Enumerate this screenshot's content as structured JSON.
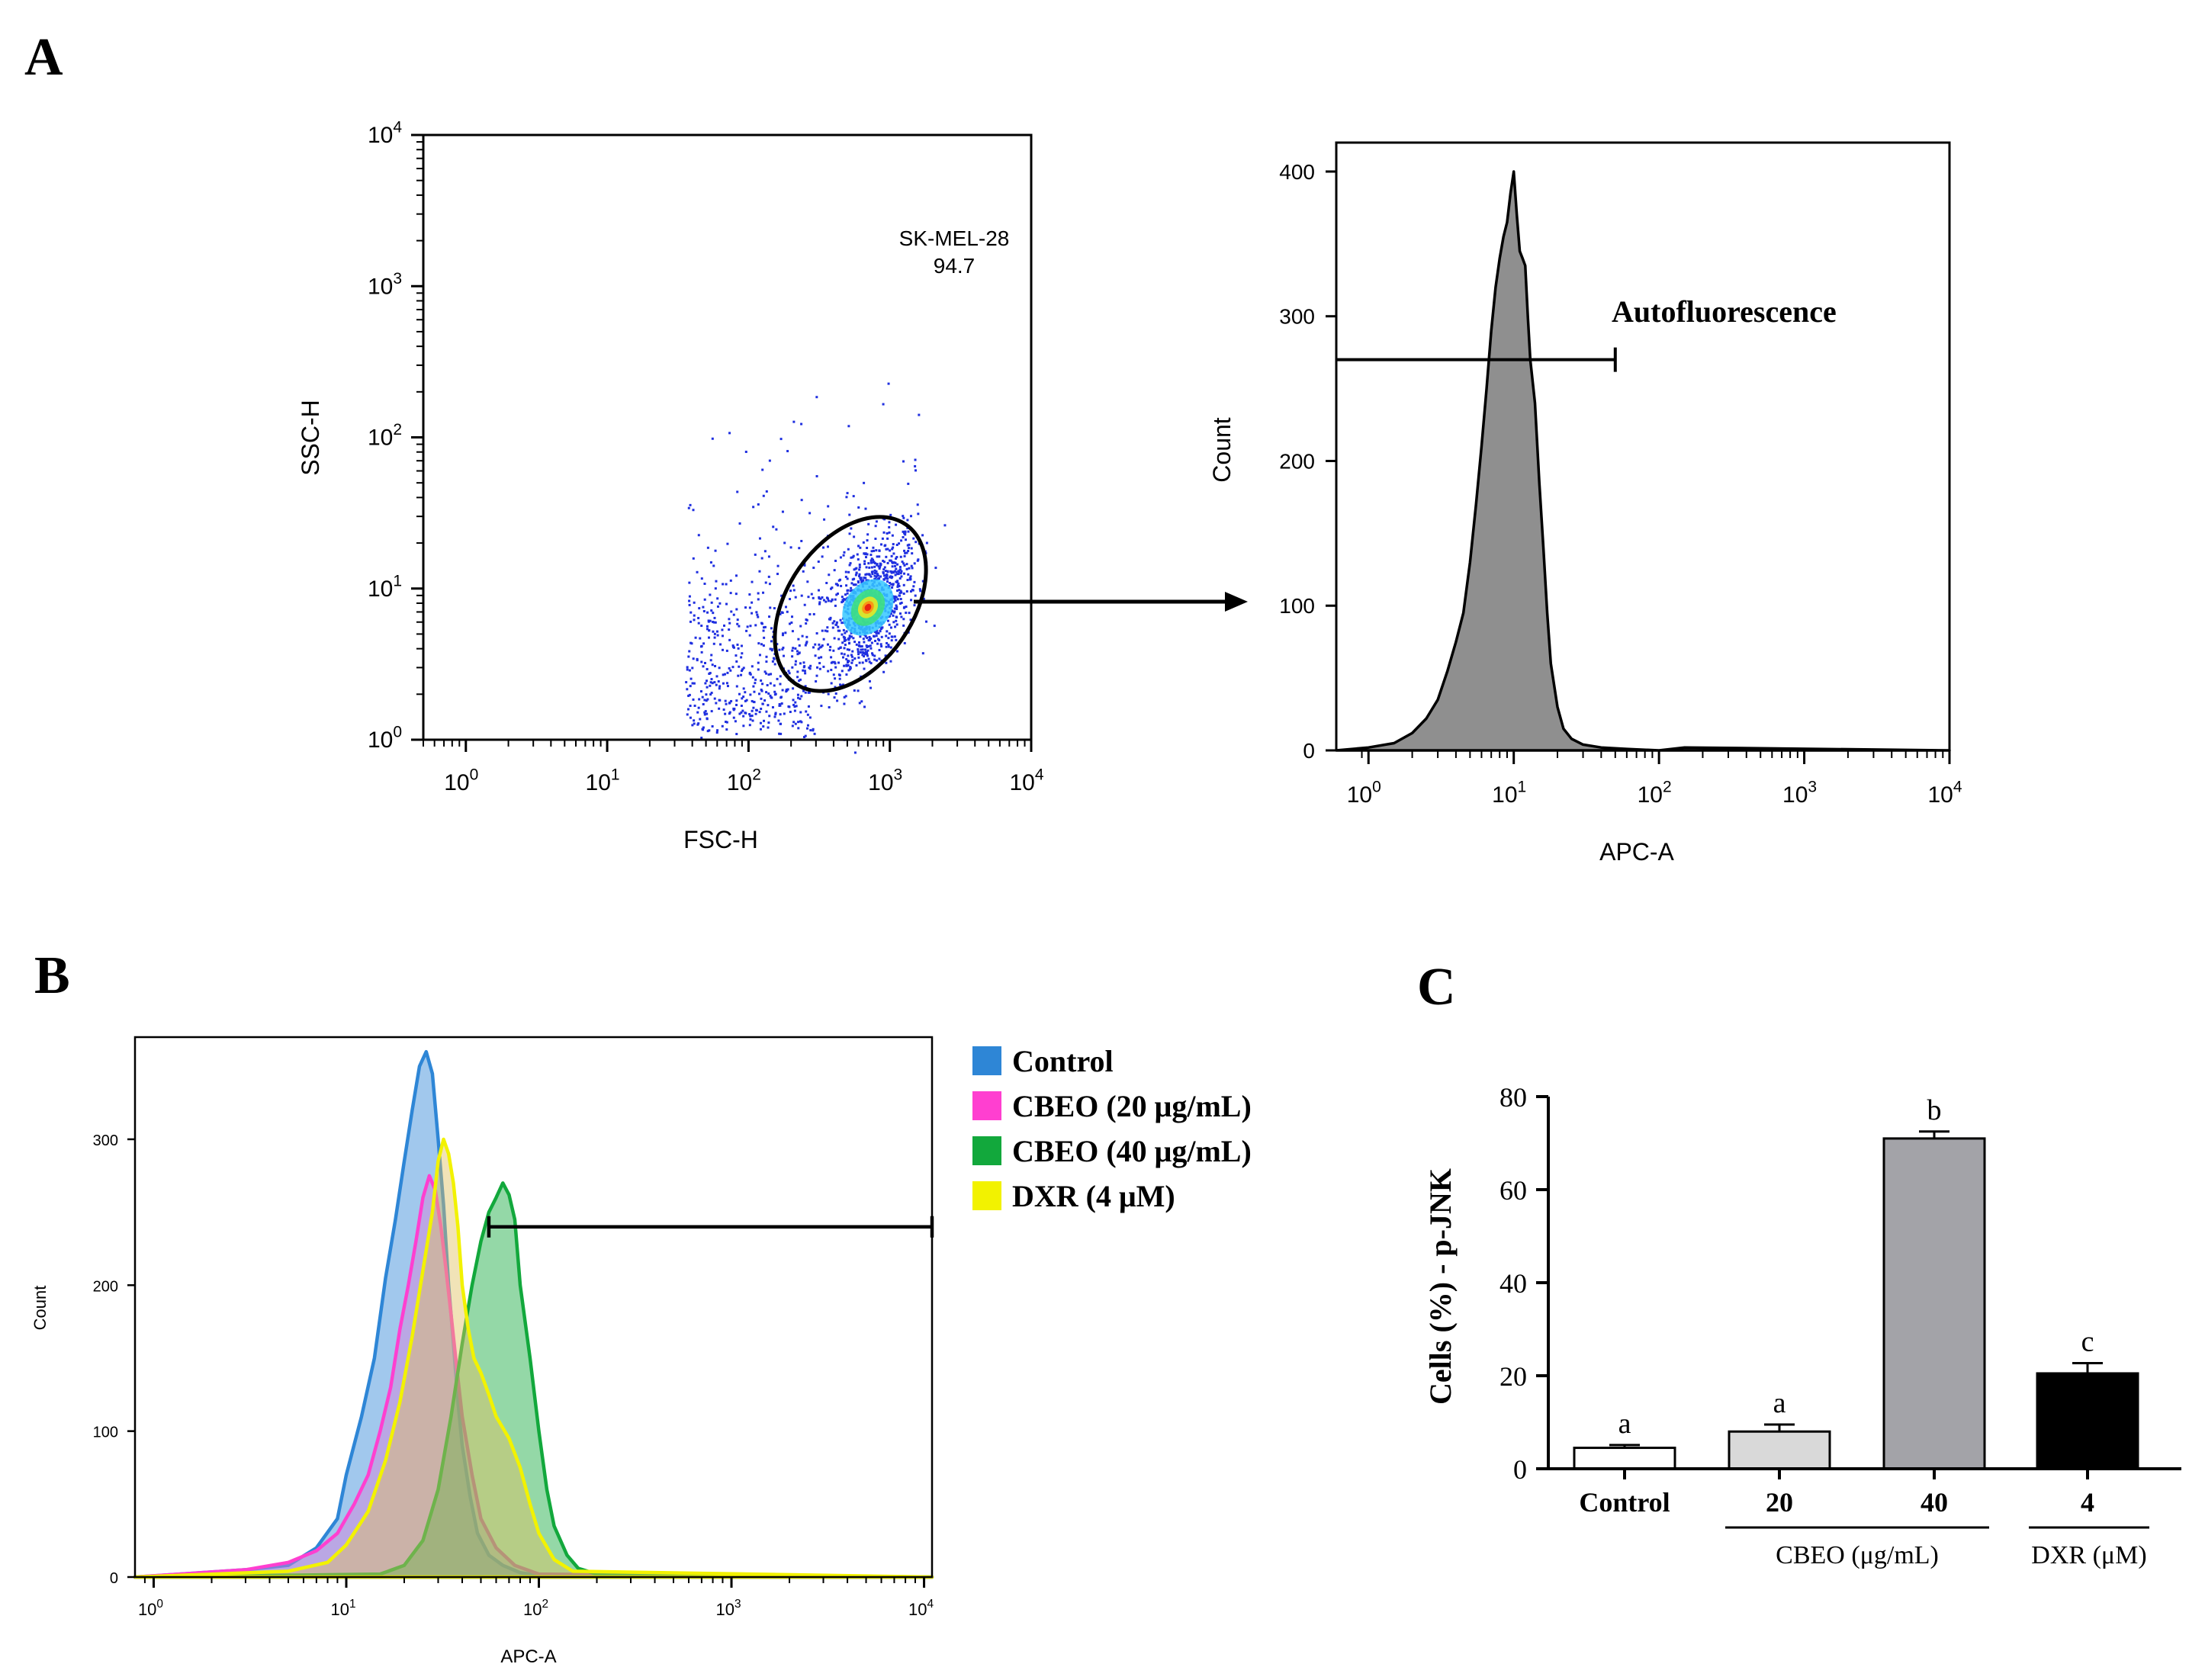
{
  "panel_labels": {
    "a": "A",
    "b": "B",
    "c": "C"
  },
  "colors": {
    "scatter_points": "#1f2fe0",
    "histogram_fill": "#8f8f8f",
    "control": "#2e86d6",
    "cbeo20": "#ff3fd0",
    "cbeo40": "#12a83c",
    "dxr4": "#f2f200"
  },
  "chart_data": [
    {
      "id": "scatter",
      "type": "scatter",
      "xlabel": "FSC-H",
      "ylabel": "SSC-H",
      "xscale": "log",
      "yscale": "log",
      "xlim": [
        0.5,
        10000
      ],
      "ylim": [
        1,
        10000
      ],
      "x_ticks": [
        {
          "base": "10",
          "exp": "0",
          "value": 1
        },
        {
          "base": "10",
          "exp": "1",
          "value": 10
        },
        {
          "base": "10",
          "exp": "2",
          "value": 100
        },
        {
          "base": "10",
          "exp": "3",
          "value": 1000
        },
        {
          "base": "10",
          "exp": "4",
          "value": 10000
        }
      ],
      "y_ticks": [
        {
          "base": "10",
          "exp": "0",
          "value": 1
        },
        {
          "base": "10",
          "exp": "1",
          "value": 10
        },
        {
          "base": "10",
          "exp": "2",
          "value": 100
        },
        {
          "base": "10",
          "exp": "3",
          "value": 1000
        },
        {
          "base": "10",
          "exp": "4",
          "value": 10000
        }
      ],
      "gate": {
        "name": "SK-MEL-28",
        "value": "94.7",
        "center": [
          700,
          7.5
        ]
      }
    },
    {
      "id": "autofluorescence",
      "type": "area",
      "xlabel": "APC-A",
      "ylabel": "Count",
      "xscale": "log",
      "xlim": [
        0.6,
        10000
      ],
      "ylim": [
        0,
        420
      ],
      "x_ticks": [
        {
          "base": "10",
          "exp": "0",
          "value": 1
        },
        {
          "base": "10",
          "exp": "1",
          "value": 10
        },
        {
          "base": "10",
          "exp": "2",
          "value": 100
        },
        {
          "base": "10",
          "exp": "3",
          "value": 1000
        },
        {
          "base": "10",
          "exp": "4",
          "value": 10000
        }
      ],
      "y_ticks": [
        0,
        100,
        200,
        300,
        400
      ],
      "gate": {
        "label": "Autofluorescence",
        "x_range": [
          0.6,
          50
        ],
        "y": 270
      },
      "x": [
        0.6,
        1.0,
        1.5,
        2.0,
        2.5,
        3.0,
        3.5,
        4.0,
        4.5,
        5.0,
        5.5,
        6.0,
        6.5,
        7.0,
        7.5,
        8.0,
        8.5,
        9.0,
        9.5,
        10.0,
        10.5,
        11.0,
        11.5,
        12.0,
        12.5,
        13.0,
        14.0,
        15.0,
        16.0,
        17.0,
        18.0,
        20.0,
        22.0,
        25.0,
        30.0,
        40.0,
        60.0,
        100.0,
        150.0,
        10000.0
      ],
      "y": [
        0,
        2,
        5,
        12,
        22,
        35,
        55,
        75,
        95,
        130,
        170,
        210,
        250,
        290,
        320,
        340,
        355,
        365,
        385,
        400,
        370,
        345,
        340,
        335,
        300,
        270,
        240,
        185,
        140,
        95,
        60,
        30,
        15,
        8,
        4,
        2,
        1,
        0,
        2,
        0
      ]
    },
    {
      "id": "pjnk-histograms",
      "type": "area",
      "xlabel": "APC-A",
      "ylabel": "Count",
      "xscale": "log",
      "xlim": [
        0.8,
        11000
      ],
      "ylim": [
        0,
        370
      ],
      "x_ticks": [
        {
          "base": "10",
          "exp": "0",
          "value": 1
        },
        {
          "base": "10",
          "exp": "1",
          "value": 10
        },
        {
          "base": "10",
          "exp": "2",
          "value": 100
        },
        {
          "base": "10",
          "exp": "3",
          "value": 1000
        },
        {
          "base": "10",
          "exp": "4",
          "value": 10000
        }
      ],
      "y_ticks": [
        0,
        100,
        200,
        300
      ],
      "gate": {
        "x_range": [
          55,
          11000
        ],
        "y": 240
      },
      "legend_position": "right",
      "series": [
        {
          "name": "Control",
          "color": "#2e86d6",
          "x": [
            0.8,
            3,
            5,
            7,
            9,
            10,
            12,
            14,
            16,
            18,
            20,
            22,
            24,
            26,
            28,
            30,
            32,
            34,
            36,
            38,
            40,
            44,
            48,
            55,
            65,
            80,
            100,
            11000
          ],
          "y": [
            0,
            5,
            8,
            20,
            40,
            70,
            110,
            150,
            205,
            245,
            285,
            320,
            350,
            360,
            345,
            300,
            255,
            200,
            160,
            120,
            90,
            55,
            30,
            15,
            8,
            3,
            1,
            0
          ]
        },
        {
          "name": "CBEO (20 μg/mL)",
          "color": "#ff3fd0",
          "x": [
            0.8,
            3,
            5,
            7,
            9,
            11,
            13,
            15,
            17,
            19,
            21,
            23,
            25,
            27,
            29,
            31,
            33,
            35,
            37,
            40,
            45,
            50,
            60,
            75,
            100,
            11000
          ],
          "y": [
            0,
            5,
            10,
            18,
            30,
            50,
            70,
            100,
            130,
            170,
            200,
            230,
            260,
            275,
            265,
            240,
            210,
            180,
            150,
            110,
            70,
            40,
            20,
            8,
            2,
            0
          ]
        },
        {
          "name": "CBEO (40 μg/mL)",
          "color": "#12a83c",
          "x": [
            0.8,
            15,
            20,
            25,
            30,
            35,
            40,
            45,
            50,
            55,
            60,
            65,
            70,
            75,
            80,
            90,
            100,
            110,
            120,
            140,
            160,
            200,
            11000
          ],
          "y": [
            0,
            2,
            8,
            25,
            60,
            110,
            160,
            200,
            230,
            250,
            260,
            270,
            262,
            245,
            200,
            150,
            100,
            60,
            35,
            15,
            6,
            2,
            0
          ]
        },
        {
          "name": "DXR (4 μM)",
          "color": "#f2f200",
          "x": [
            0.8,
            5,
            8,
            10,
            13,
            16,
            19,
            22,
            25,
            28,
            30,
            32,
            34,
            36,
            38,
            40,
            43,
            46,
            50,
            55,
            60,
            70,
            80,
            90,
            100,
            120,
            150,
            11000
          ],
          "y": [
            0,
            4,
            10,
            22,
            45,
            80,
            120,
            165,
            210,
            250,
            285,
            300,
            290,
            270,
            240,
            200,
            170,
            150,
            140,
            125,
            110,
            95,
            75,
            50,
            30,
            12,
            4,
            0
          ]
        }
      ]
    },
    {
      "id": "pjnk-bar",
      "type": "bar",
      "ylabel": "Cells (%) - p-JNK",
      "ylim": [
        0,
        80
      ],
      "y_ticks": [
        0,
        20,
        40,
        60,
        80
      ],
      "categories": [
        "Control",
        "20",
        "40",
        "4"
      ],
      "values": [
        4.5,
        8,
        71,
        20.5
      ],
      "errors": [
        0.6,
        1.5,
        1.5,
        2.2
      ],
      "letters": [
        "a",
        "a",
        "b",
        "c"
      ],
      "bar_colors": [
        "#ffffff",
        "#d9d9d9",
        "#a3a3a8",
        "#000000"
      ],
      "groups": [
        {
          "label": "CBEO (μg/mL)",
          "categories": [
            "20",
            "40"
          ]
        },
        {
          "label": "DXR (μM)",
          "categories": [
            "4"
          ]
        }
      ]
    }
  ]
}
